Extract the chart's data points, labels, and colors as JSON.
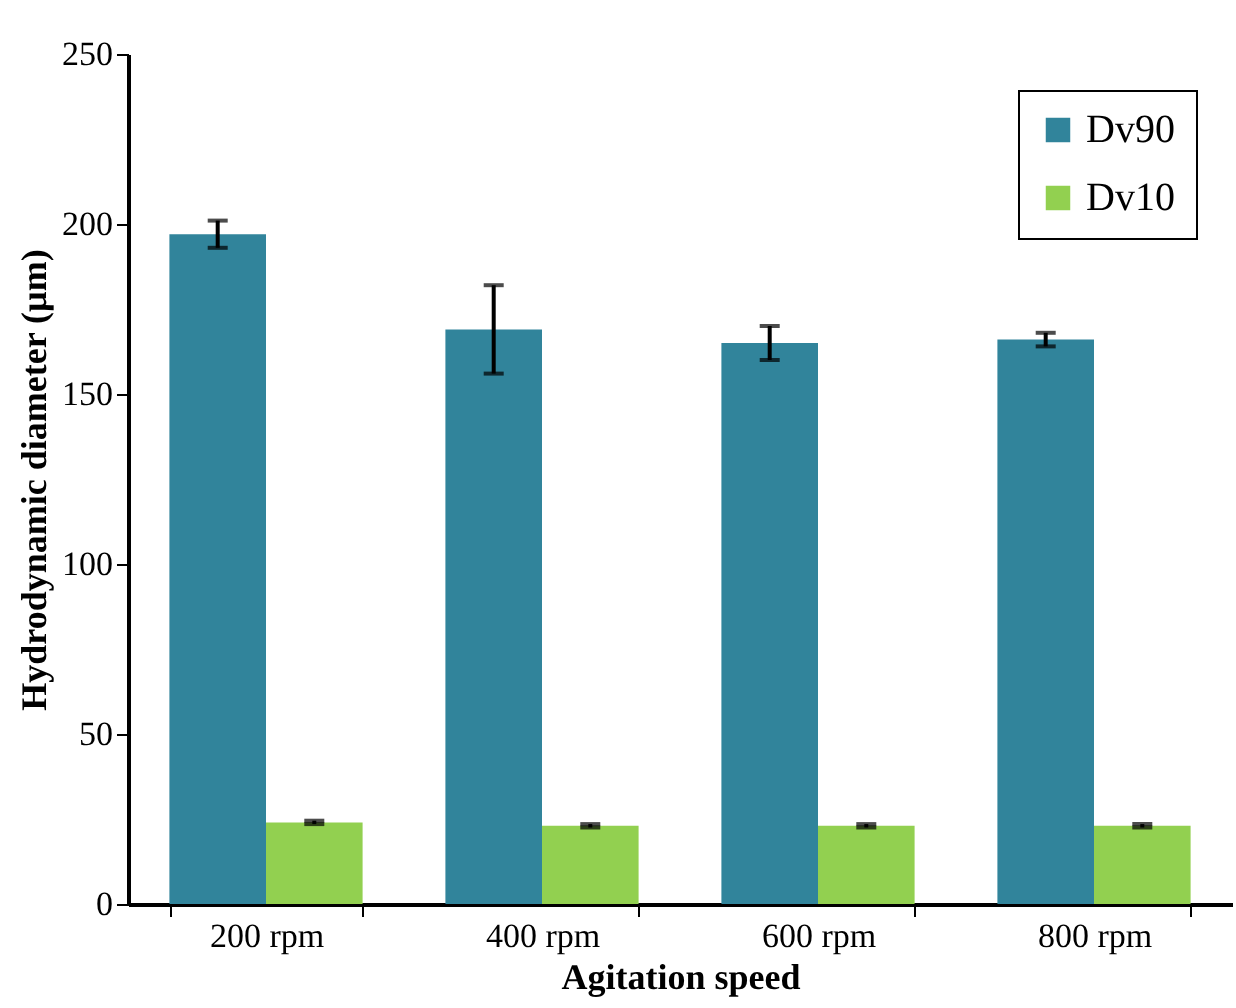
{
  "chart_data": {
    "type": "bar",
    "xlabel": "Agitation speed",
    "ylabel": "Hydrodynamic diameter (µm)",
    "categories": [
      "200 rpm",
      "400 rpm",
      "600 rpm",
      "800 rpm"
    ],
    "series": [
      {
        "name": "Dv90",
        "color": "#31849b",
        "values": [
          197,
          169,
          165,
          166
        ],
        "errors": [
          4,
          13,
          5,
          2
        ]
      },
      {
        "name": "Dv10",
        "color": "#92d050",
        "values": [
          24,
          23,
          23,
          23
        ],
        "errors": [
          0.5,
          0.5,
          0.5,
          0.5
        ]
      }
    ],
    "ylim": [
      0,
      250
    ],
    "yticks": [
      0,
      50,
      100,
      150,
      200,
      250
    ],
    "grid": false,
    "legend": "top right"
  }
}
